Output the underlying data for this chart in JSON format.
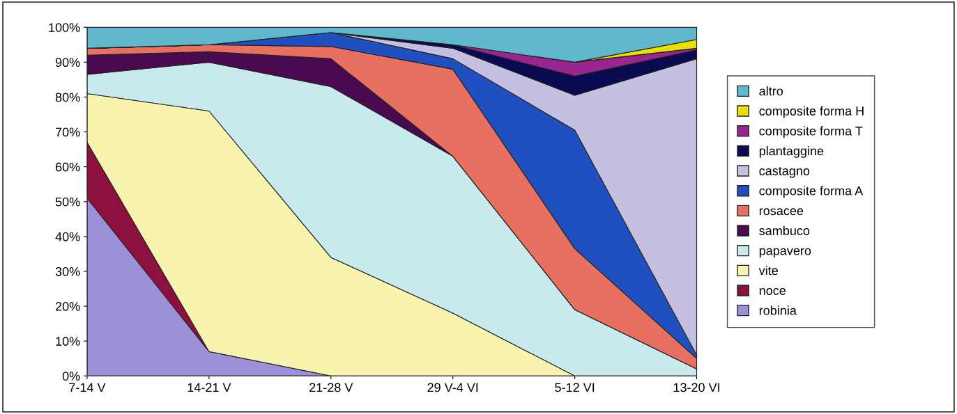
{
  "chart_data": {
    "type": "area",
    "stacked": true,
    "categories": [
      "7-14 V",
      "14-21 V",
      "21-28 V",
      "29 V-4 VI",
      "5-12 VI",
      "13-20 VI"
    ],
    "series": [
      {
        "name": "robinia",
        "color": "#9c90d8",
        "values": [
          51,
          7,
          0,
          0,
          0,
          0
        ]
      },
      {
        "name": "noce",
        "color": "#8c1040",
        "values": [
          16,
          0,
          0,
          0,
          0,
          0
        ]
      },
      {
        "name": "vite",
        "color": "#f8f4b0",
        "values": [
          14,
          69,
          34,
          18,
          0,
          0
        ]
      },
      {
        "name": "papavero",
        "color": "#c8eaec",
        "values": [
          5.5,
          14,
          49,
          45,
          19,
          2
        ]
      },
      {
        "name": "sambuco",
        "color": "#4a0a50",
        "values": [
          5.5,
          3,
          8,
          0,
          0,
          0
        ]
      },
      {
        "name": "rosacee",
        "color": "#e87060",
        "values": [
          2,
          2,
          3.5,
          25,
          17.5,
          3
        ]
      },
      {
        "name": "composite forma A",
        "color": "#2050c0",
        "values": [
          0,
          0,
          4,
          3,
          34,
          1
        ]
      },
      {
        "name": "castagno",
        "color": "#c5c0e0",
        "values": [
          0,
          0,
          0,
          3,
          10,
          85
        ]
      },
      {
        "name": "plantaggine",
        "color": "#0a0a50",
        "values": [
          0,
          0,
          0,
          1,
          5.5,
          2.5
        ]
      },
      {
        "name": "composite forma T",
        "color": "#9b2590",
        "values": [
          0,
          0,
          0,
          0,
          4,
          0.5
        ]
      },
      {
        "name": "composite forma H",
        "color": "#e8e000",
        "values": [
          0,
          0,
          0,
          0,
          0,
          2.5
        ]
      },
      {
        "name": "altro",
        "color": "#5fb8cc",
        "values": [
          6,
          5,
          1.5,
          5,
          10,
          3.5
        ]
      }
    ],
    "ylim": [
      0,
      100
    ],
    "yticks": [
      {
        "value": 0,
        "label": "0%"
      },
      {
        "value": 10,
        "label": "10%"
      },
      {
        "value": 20,
        "label": "20%"
      },
      {
        "value": 30,
        "label": "30%"
      },
      {
        "value": 40,
        "label": "40%"
      },
      {
        "value": 50,
        "label": "50%"
      },
      {
        "value": 60,
        "label": "60%"
      },
      {
        "value": 70,
        "label": "70%"
      },
      {
        "value": 80,
        "label": "80%"
      },
      {
        "value": 90,
        "label": "90%"
      },
      {
        "value": 100,
        "label": "100%"
      }
    ],
    "legend": "right",
    "grid": false
  }
}
